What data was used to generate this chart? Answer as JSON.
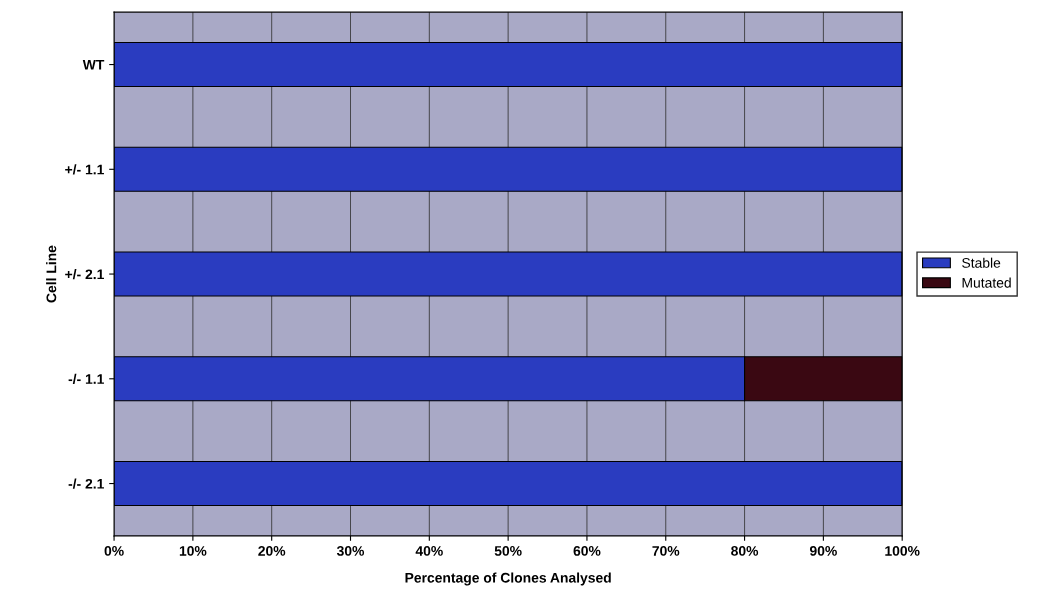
{
  "chart_data": {
    "type": "bar",
    "orientation": "horizontal",
    "stacked": true,
    "xlabel": "Percentage of Clones Analysed",
    "ylabel": "Cell Line",
    "categories": [
      "WT",
      "+/- 1.1",
      "+/- 2.1",
      "-/- 1.1",
      "-/- 2.1"
    ],
    "series": [
      {
        "name": "Stable",
        "color": "#2a3cc0",
        "values": [
          100,
          100,
          100,
          80,
          100
        ]
      },
      {
        "name": "Mutated",
        "color": "#3a0812",
        "values": [
          0,
          0,
          0,
          20,
          0
        ]
      }
    ],
    "xlim": [
      0,
      100
    ],
    "xticks": [
      {
        "value": 0,
        "label": "0%"
      },
      {
        "value": 10,
        "label": "10%"
      },
      {
        "value": 20,
        "label": "20%"
      },
      {
        "value": 30,
        "label": "30%"
      },
      {
        "value": 40,
        "label": "40%"
      },
      {
        "value": 50,
        "label": "50%"
      },
      {
        "value": 60,
        "label": "60%"
      },
      {
        "value": 70,
        "label": "70%"
      },
      {
        "value": 80,
        "label": "80%"
      },
      {
        "value": 90,
        "label": "90%"
      },
      {
        "value": 100,
        "label": "100%"
      }
    ],
    "grid": "x",
    "legend": "right"
  }
}
